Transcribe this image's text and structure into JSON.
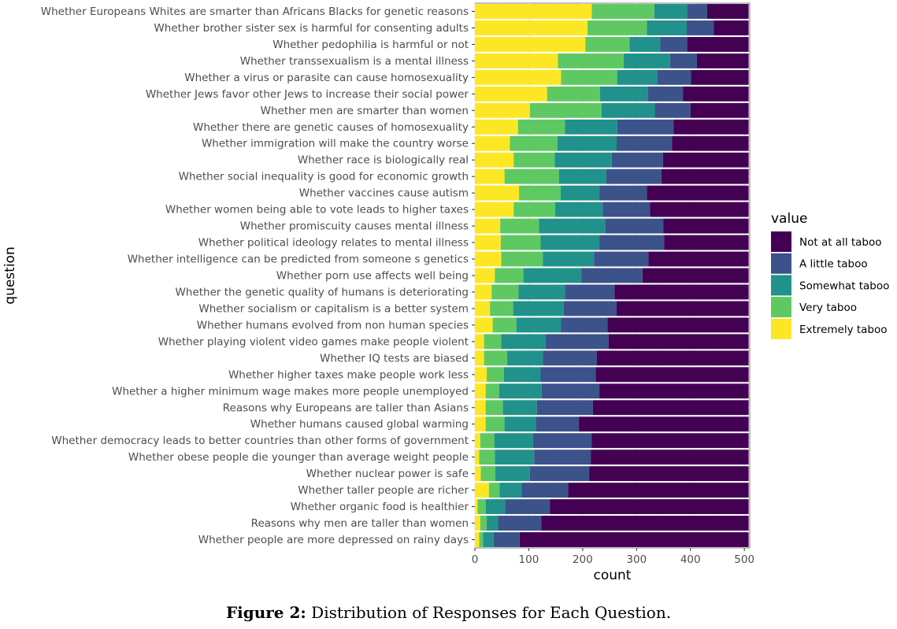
{
  "caption": {
    "label": "Figure 2:",
    "text": "Distribution of Responses for Each Question."
  },
  "chart_data": {
    "type": "bar",
    "orientation": "horizontal",
    "stacked": true,
    "xlabel": "count",
    "ylabel": "question",
    "xlim": [
      0,
      510
    ],
    "xticks": [
      0,
      100,
      200,
      300,
      400,
      500
    ],
    "grid": true,
    "legend": {
      "title": "value",
      "position": "right"
    },
    "categories": [
      "Whether Europeans Whites are smarter than Africans Blacks for genetic reasons",
      "Whether brother sister sex is harmful for consenting adults",
      "Whether pedophilia is harmful or not",
      "Whether transsexualism is a mental illness",
      "Whether a virus or parasite can cause homosexuality",
      "Whether Jews favor other Jews to increase their social power",
      "Whether men are smarter than women",
      "Whether there are genetic causes of homosexuality",
      "Whether immigration will make the country worse",
      "Whether race is biologically real",
      "Whether social inequality is good for economic growth",
      "Whether vaccines cause autism",
      "Whether women being able to vote leads to higher taxes",
      "Whether promiscuity causes mental illness",
      "Whether political ideology relates to mental illness",
      "Whether intelligence can be predicted from someone s genetics",
      "Whether porn use affects well being",
      "Whether the genetic quality of humans is deteriorating",
      "Whether socialism or capitalism is a better system",
      "Whether humans evolved from non human species",
      "Whether playing violent video games make people violent",
      "Whether IQ tests are biased",
      "Whether higher taxes make people work less",
      "Whether a higher minimum wage makes more people unemployed",
      "Reasons why Europeans are taller than Asians",
      "Whether humans caused global warming",
      "Whether democracy leads to better countries than other forms of government",
      "Whether obese people die younger than average weight people",
      "Whether nuclear power is safe",
      "Whether taller people are richer",
      "Whether organic food is healthier",
      "Reasons why men are taller than women",
      "Whether people are more depressed on rainy days"
    ],
    "series": [
      {
        "name": "Extremely taboo",
        "color": "#fde725",
        "values": [
          217,
          209,
          205,
          154,
          160,
          134,
          102,
          80,
          65,
          72,
          55,
          82,
          72,
          47,
          48,
          49,
          37,
          31,
          28,
          33,
          17,
          17,
          22,
          20,
          20,
          20,
          10,
          8,
          11,
          26,
          5,
          10,
          8
        ]
      },
      {
        "name": "Very taboo",
        "color": "#5ec962",
        "values": [
          116,
          110,
          82,
          122,
          104,
          98,
          133,
          87,
          88,
          76,
          101,
          77,
          77,
          72,
          74,
          77,
          53,
          50,
          43,
          44,
          32,
          43,
          32,
          25,
          32,
          35,
          26,
          29,
          27,
          20,
          15,
          12,
          7
        ]
      },
      {
        "name": "Somewhat taboo",
        "color": "#21918c",
        "values": [
          61,
          74,
          57,
          86,
          75,
          89,
          99,
          97,
          110,
          106,
          88,
          72,
          88,
          123,
          109,
          95,
          108,
          86,
          94,
          83,
          82,
          66,
          68,
          79,
          63,
          58,
          72,
          73,
          64,
          41,
          36,
          21,
          20
        ]
      },
      {
        "name": "A little taboo",
        "color": "#3b528b",
        "values": [
          37,
          50,
          50,
          50,
          62,
          65,
          66,
          105,
          103,
          95,
          102,
          88,
          88,
          108,
          120,
          101,
          113,
          92,
          98,
          86,
          117,
          100,
          102,
          107,
          104,
          80,
          109,
          105,
          110,
          86,
          83,
          80,
          48
        ]
      },
      {
        "name": "Not at all taboo",
        "color": "#440154",
        "values": [
          77,
          65,
          114,
          96,
          107,
          122,
          108,
          139,
          142,
          159,
          162,
          189,
          183,
          158,
          157,
          186,
          197,
          249,
          245,
          262,
          260,
          282,
          284,
          277,
          289,
          315,
          291,
          293,
          296,
          335,
          369,
          385,
          425
        ]
      }
    ],
    "legend_order": [
      "Not at all taboo",
      "A little taboo",
      "Somewhat taboo",
      "Very taboo",
      "Extremely taboo"
    ],
    "legend_title": "value"
  }
}
